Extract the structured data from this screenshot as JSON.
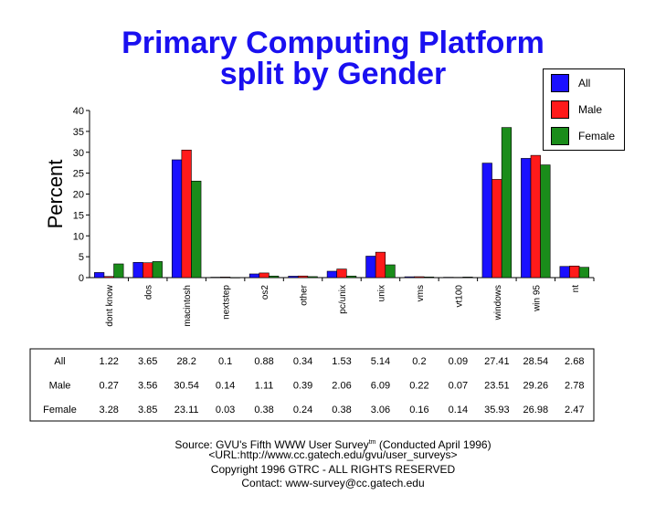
{
  "title_line1": "Primary Computing Platform",
  "title_line2": "split by Gender",
  "colors": {
    "title": "#1a10f0",
    "All": "#1a10ff",
    "Male": "#ff1a1a",
    "Female": "#1a8c1a"
  },
  "chart_data": {
    "type": "bar",
    "title": "Primary Computing Platform split by Gender",
    "ylabel": "Percent",
    "xlabel": "",
    "ylim": [
      0,
      40
    ],
    "yticks": [
      0,
      5,
      10,
      15,
      20,
      25,
      30,
      35,
      40
    ],
    "grid": false,
    "legend_position": "top-right",
    "categories": [
      "dont know",
      "dos",
      "macintosh",
      "nextstep",
      "os2",
      "other",
      "pc/unix",
      "unix",
      "vms",
      "vt100",
      "windows",
      "win 95",
      "nt"
    ],
    "series": [
      {
        "name": "All",
        "values": [
          1.22,
          3.65,
          28.2,
          0.1,
          0.88,
          0.34,
          1.53,
          5.14,
          0.2,
          0.09,
          27.41,
          28.54,
          2.68
        ]
      },
      {
        "name": "Male",
        "values": [
          0.27,
          3.56,
          30.54,
          0.14,
          1.11,
          0.39,
          2.06,
          6.09,
          0.22,
          0.07,
          23.51,
          29.26,
          2.78
        ]
      },
      {
        "name": "Female",
        "values": [
          3.28,
          3.85,
          23.11,
          0.03,
          0.38,
          0.24,
          0.38,
          3.06,
          0.16,
          0.14,
          35.93,
          26.98,
          2.47
        ]
      }
    ]
  },
  "table": {
    "rows": [
      {
        "label": "All",
        "cells": [
          "1.22",
          "3.65",
          "28.2",
          "0.1",
          "0.88",
          "0.34",
          "1.53",
          "5.14",
          "0.2",
          "0.09",
          "27.41",
          "28.54",
          "2.68"
        ]
      },
      {
        "label": "Male",
        "cells": [
          "0.27",
          "3.56",
          "30.54",
          "0.14",
          "1.11",
          "0.39",
          "2.06",
          "6.09",
          "0.22",
          "0.07",
          "23.51",
          "29.26",
          "2.78"
        ]
      },
      {
        "label": "Female",
        "cells": [
          "3.28",
          "3.85",
          "23.11",
          "0.03",
          "0.38",
          "0.24",
          "0.38",
          "3.06",
          "0.16",
          "0.14",
          "35.93",
          "26.98",
          "2.47"
        ]
      }
    ]
  },
  "source": {
    "line1_prefix": "Source: GVU's Fifth WWW User Survey",
    "line1_sup": "tm",
    "line1_suffix": " (Conducted April 1996)",
    "line2": "<URL:http://www.cc.gatech.edu/gvu/user_surveys>",
    "line3": "Copyright 1996 GTRC -  ALL RIGHTS RESERVED",
    "line4": "Contact: www-survey@cc.gatech.edu"
  }
}
